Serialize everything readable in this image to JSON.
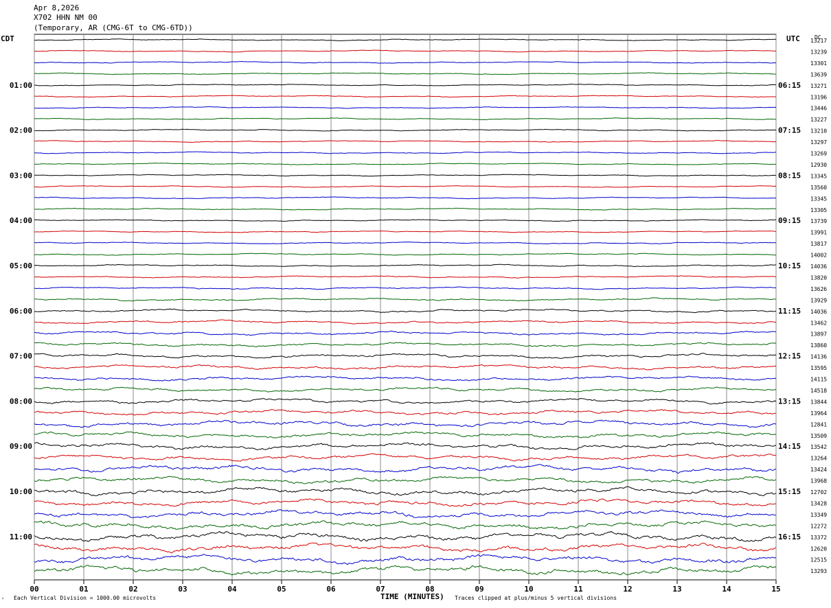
{
  "header": {
    "date": "Apr 8,2026",
    "station": "X702 HHN NM 00",
    "network": "(Temporary, AR (CMG-6T to CMG-6TD))"
  },
  "left_tz": "CDT",
  "right_tz": "UTC",
  "dc_label": "DC",
  "footer": {
    "scale_note": "Each Vertical Division = 1000.00 microvolts",
    "clip_note": "Traces clipped at plus/minus 5 vertical divisions"
  },
  "colors": {
    "trace_cycle": [
      "#000000",
      "#d40000",
      "#0000cc",
      "#006600"
    ],
    "grid": "#888888"
  },
  "chart_data": {
    "type": "line",
    "xlabel": "TIME (MINUTES)",
    "xlim": [
      0,
      15
    ],
    "x_ticks": [
      "00",
      "01",
      "02",
      "03",
      "04",
      "05",
      "06",
      "07",
      "08",
      "09",
      "10",
      "11",
      "12",
      "13",
      "14",
      "15"
    ],
    "grid": "vertical lines at each minute",
    "left_time_labels": [
      "01:00",
      "02:00",
      "03:00",
      "04:00",
      "05:00",
      "06:00",
      "07:00",
      "08:00",
      "09:00",
      "10:00",
      "11:00"
    ],
    "right_time_labels": [
      "06:15",
      "07:15",
      "08:15",
      "09:15",
      "10:15",
      "11:15",
      "12:15",
      "13:15",
      "14:15",
      "15:15",
      "16:15"
    ],
    "label_every_n_traces": 4,
    "first_labeled_trace": 4,
    "dc_offsets": [
      13217,
      13239,
      13301,
      13639,
      13271,
      13196,
      13446,
      13227,
      13210,
      13297,
      13269,
      12930,
      13345,
      13560,
      13345,
      13305,
      13739,
      13991,
      13817,
      14002,
      14036,
      13820,
      13626,
      13929,
      14036,
      13462,
      13897,
      13860,
      14136,
      13595,
      14115,
      14518,
      13844,
      13964,
      12841,
      13509,
      13542,
      13264,
      13424,
      13968,
      12702,
      13428,
      13349,
      12272,
      13372,
      12620,
      12515,
      13293
    ],
    "trace_activity": [
      0.35,
      0.35,
      0.35,
      0.35,
      0.35,
      0.35,
      0.35,
      0.35,
      0.35,
      0.35,
      0.35,
      0.35,
      0.35,
      0.35,
      0.35,
      0.35,
      0.35,
      0.35,
      0.4,
      0.4,
      0.45,
      0.45,
      0.5,
      0.6,
      0.7,
      0.75,
      0.85,
      0.9,
      1.0,
      1.0,
      1.0,
      1.05,
      1.1,
      1.2,
      1.4,
      1.3,
      1.4,
      1.4,
      1.6,
      1.5,
      1.7,
      1.6,
      1.7,
      1.8,
      1.9,
      1.9,
      1.9,
      2.0
    ]
  }
}
